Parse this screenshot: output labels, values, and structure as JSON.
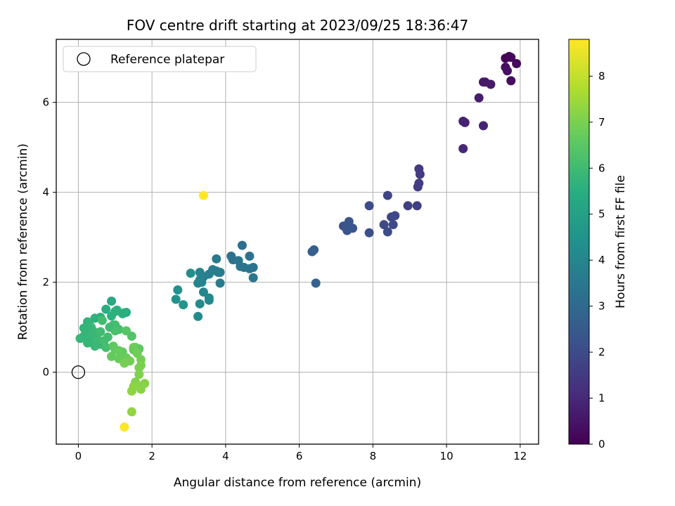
{
  "chart_data": {
    "type": "scatter",
    "title": "FOV centre drift starting at 2023/09/25 18:36:47",
    "xlabel": "Angular distance from reference (arcmin)",
    "ylabel": "Rotation from reference (arcmin)",
    "xlim": [
      -0.6,
      12.5
    ],
    "ylim": [
      -1.6,
      7.4
    ],
    "xticks": [
      0,
      2,
      4,
      6,
      8,
      10,
      12
    ],
    "yticks": [
      0,
      2,
      4,
      6
    ],
    "grid": true,
    "legend": {
      "position": "top-left",
      "entries": [
        "Reference platepar"
      ]
    },
    "reference_point": {
      "x": 0,
      "y": 0
    },
    "colorbar": {
      "label": "Hours from first FF file",
      "range": [
        0,
        8.8
      ],
      "ticks": [
        0,
        1,
        2,
        3,
        4,
        5,
        6,
        7,
        8
      ],
      "colormap": "viridis"
    },
    "series": [
      {
        "x": [
          11.6,
          11.7,
          11.9,
          11.75,
          11.6,
          11.65,
          11.75,
          11.0,
          11.05,
          11.2,
          10.88,
          10.45,
          10.5,
          11.0,
          10.45
        ],
        "y": [
          6.98,
          7.02,
          6.86,
          6.48,
          6.78,
          6.7,
          7.0,
          6.45,
          6.45,
          6.4,
          6.1,
          5.58,
          5.55,
          5.48,
          4.97
        ],
        "c": [
          0.1,
          0.12,
          0.2,
          0.3,
          0.35,
          0.4,
          0.15,
          0.5,
          0.55,
          0.6,
          0.7,
          0.8,
          0.85,
          0.9,
          0.95
        ]
      },
      {
        "x": [
          9.25,
          9.28,
          9.22,
          9.25,
          8.95,
          9.2,
          8.4,
          8.5,
          8.6,
          8.3,
          8.55,
          8.4,
          7.9,
          7.9,
          7.2,
          7.3,
          7.35,
          7.4,
          7.3,
          7.45,
          6.35,
          6.4,
          6.45
        ],
        "y": [
          4.52,
          4.4,
          4.12,
          4.2,
          3.7,
          3.7,
          3.93,
          3.45,
          3.48,
          3.28,
          3.28,
          3.12,
          3.7,
          3.1,
          3.25,
          3.2,
          3.35,
          3.2,
          3.15,
          3.2,
          2.68,
          2.72,
          1.98
        ],
        "c": [
          1.5,
          1.55,
          1.6,
          1.58,
          1.7,
          1.65,
          1.8,
          1.85,
          1.9,
          1.95,
          1.92,
          2.0,
          2.05,
          2.1,
          2.2,
          2.25,
          2.3,
          2.28,
          2.35,
          2.32,
          2.6,
          2.65,
          2.8
        ]
      },
      {
        "x": [
          4.45,
          4.15,
          4.2,
          4.65,
          4.75,
          4.5,
          4.35,
          4.4,
          4.65,
          4.75,
          3.75,
          3.75,
          3.85,
          3.85,
          3.65,
          3.8,
          3.55,
          3.4,
          3.3,
          3.35,
          3.25,
          3.3,
          3.4,
          3.55,
          3.55,
          3.25,
          3.3,
          3.05,
          2.7,
          2.65,
          2.85
        ],
        "y": [
          2.82,
          2.58,
          2.5,
          2.58,
          2.33,
          2.33,
          2.48,
          2.35,
          2.3,
          2.1,
          2.52,
          2.25,
          2.22,
          1.98,
          2.28,
          2.22,
          2.18,
          2.12,
          2.22,
          2.0,
          1.98,
          2.05,
          1.78,
          1.65,
          1.6,
          1.24,
          1.52,
          2.2,
          1.83,
          1.62,
          1.5
        ],
        "c": [
          3.2,
          3.25,
          3.3,
          3.3,
          3.35,
          3.35,
          3.4,
          3.4,
          3.38,
          3.45,
          3.55,
          3.6,
          3.6,
          3.65,
          3.7,
          3.72,
          3.75,
          3.8,
          3.85,
          3.9,
          3.95,
          3.92,
          4.0,
          4.05,
          4.1,
          4.2,
          4.15,
          4.3,
          4.4,
          4.45,
          4.5
        ]
      },
      {
        "x": [
          0.9,
          1.0,
          0.75,
          1.3,
          1.25,
          1.05,
          0.6,
          0.45,
          0.25,
          0.3,
          0.15,
          0.05,
          0.2,
          0.4,
          0.5,
          0.35,
          0.6,
          0.8,
          0.95,
          0.65,
          1.1,
          0.9,
          1.2,
          0.3,
          0.4,
          0.55,
          0.15,
          0.7,
          1.0,
          0.45,
          0.25,
          0.85,
          0.5,
          0.6,
          0.7,
          0.3,
          1.0,
          0.2,
          0.35,
          0.75
        ],
        "y": [
          1.58,
          1.35,
          1.4,
          1.33,
          1.32,
          1.38,
          1.22,
          1.2,
          1.12,
          1.05,
          0.98,
          0.75,
          0.88,
          0.92,
          0.85,
          1.0,
          0.9,
          0.78,
          1.05,
          1.15,
          0.95,
          1.25,
          1.3,
          0.72,
          0.65,
          0.7,
          0.8,
          0.6,
          1.05,
          0.58,
          0.65,
          1.0,
          0.75,
          0.62,
          0.7,
          0.95,
          0.92,
          1.0,
          0.82,
          0.55
        ],
        "c": [
          5.3,
          5.4,
          5.45,
          5.5,
          5.55,
          5.6,
          5.62,
          5.65,
          5.7,
          5.75,
          5.8,
          5.85,
          5.9,
          5.88,
          5.95,
          5.92,
          6.0,
          6.05,
          6.1,
          6.08,
          6.15,
          5.6,
          5.55,
          5.7,
          5.72,
          5.68,
          5.8,
          5.9,
          6.1,
          5.85,
          5.78,
          6.0,
          5.95,
          5.9,
          6.05,
          5.82,
          6.2,
          5.76,
          5.84,
          6.12
        ]
      },
      {
        "x": [
          1.45,
          1.3,
          1.55,
          1.65,
          1.5,
          1.2,
          1.0,
          0.95,
          0.9,
          1.1,
          1.3,
          1.5,
          1.6,
          1.7,
          1.4,
          1.1,
          1.25,
          0.9,
          1.65,
          1.7,
          1.65,
          1.55,
          1.8,
          1.6,
          1.7,
          1.5,
          1.45,
          1.45
        ],
        "y": [
          0.8,
          0.92,
          0.55,
          0.52,
          0.5,
          0.45,
          0.5,
          0.58,
          0.35,
          0.3,
          0.32,
          0.55,
          0.42,
          0.28,
          0.25,
          0.48,
          0.2,
          0.35,
          0.1,
          0.15,
          -0.05,
          -0.22,
          -0.25,
          -0.3,
          -0.38,
          -0.32,
          -0.42,
          -0.88
        ],
        "c": [
          6.4,
          6.45,
          6.5,
          6.55,
          6.6,
          6.62,
          6.65,
          6.6,
          6.7,
          6.72,
          6.75,
          6.8,
          6.85,
          6.9,
          6.88,
          6.7,
          6.92,
          6.68,
          6.95,
          7.0,
          7.05,
          7.1,
          7.15,
          7.2,
          7.18,
          7.22,
          7.25,
          7.3
        ]
      },
      {
        "x": [
          3.4,
          1.25
        ],
        "y": [
          3.93,
          -1.22
        ],
        "c": [
          8.8,
          8.75
        ]
      }
    ]
  }
}
